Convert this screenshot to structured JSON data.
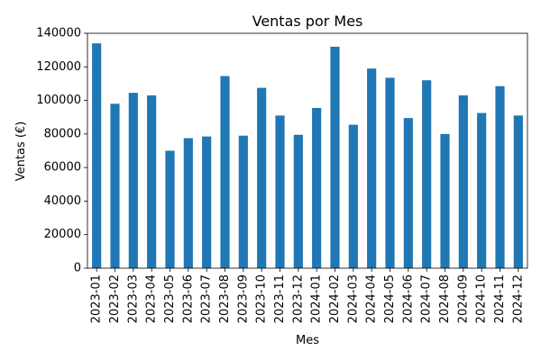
{
  "chart_data": {
    "type": "bar",
    "title": "Ventas por Mes",
    "xlabel": "Mes",
    "ylabel": "Ventas (€)",
    "ylim": [
      0,
      140000
    ],
    "yticks": [
      0,
      20000,
      40000,
      60000,
      80000,
      100000,
      120000,
      140000
    ],
    "grid": false,
    "bar_color": "#1f77b4",
    "categories": [
      "2023-01",
      "2023-02",
      "2023-03",
      "2023-04",
      "2023-05",
      "2023-06",
      "2023-07",
      "2023-08",
      "2023-09",
      "2023-10",
      "2023-11",
      "2023-12",
      "2024-01",
      "2024-02",
      "2024-03",
      "2024-04",
      "2024-05",
      "2024-06",
      "2024-07",
      "2024-08",
      "2024-09",
      "2024-10",
      "2024-11",
      "2024-12"
    ],
    "values": [
      134000,
      98000,
      104500,
      103000,
      70000,
      77500,
      78500,
      114500,
      79000,
      107500,
      91000,
      79500,
      95500,
      132000,
      85500,
      119000,
      113500,
      89500,
      112000,
      80000,
      103000,
      92500,
      108500,
      91000
    ]
  }
}
